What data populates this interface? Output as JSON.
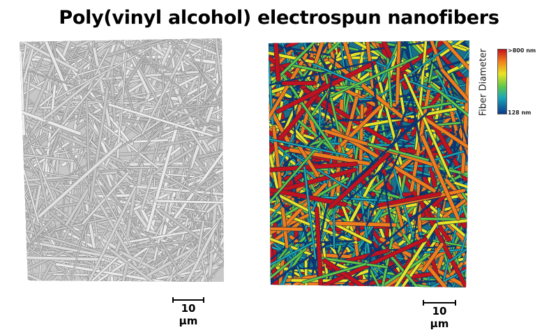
{
  "title": "Poly(vinyl alcohol) electrospun nanofibers",
  "left_panel": {
    "fiber_color": "#d0d0d0",
    "scale_bar_label": "10 µm"
  },
  "right_panel": {
    "scale_bar_label": "10 µm"
  },
  "legend": {
    "title": "Fiber Diameter",
    "max_label": ">800 nm",
    "min_label": "128 nm",
    "colors": [
      "#c1121f",
      "#f07c1c",
      "#e9e427",
      "#5fc64b",
      "#1ba7b8",
      "#0e3a8c"
    ]
  }
}
